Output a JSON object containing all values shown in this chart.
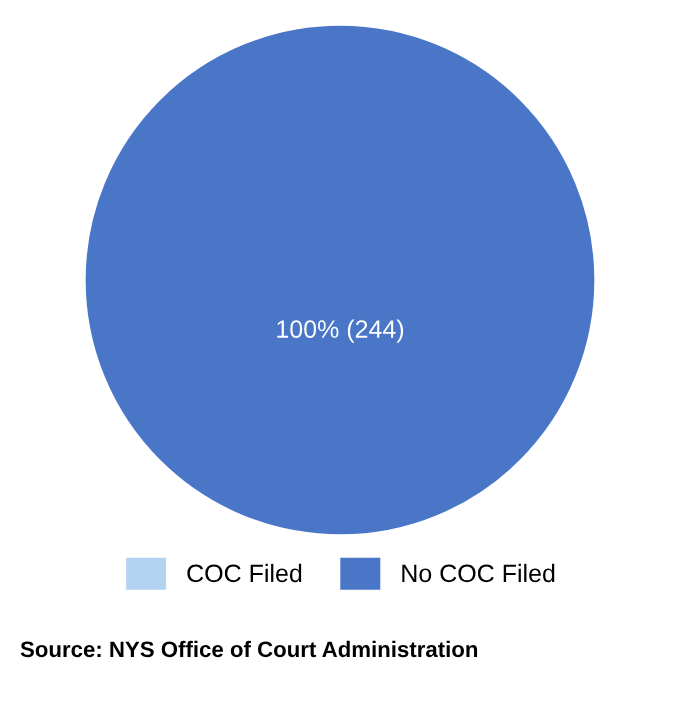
{
  "chart_data": {
    "type": "pie",
    "categories": [
      "COC Filed",
      "No COC Filed"
    ],
    "values": [
      0,
      244
    ],
    "colors": [
      "#b4d2f2",
      "#4a76c8"
    ],
    "value_labels": [
      null,
      "100% (244)"
    ],
    "legend": "bottom",
    "annotations": [
      "Source: NYS Office of Court Administration"
    ]
  }
}
